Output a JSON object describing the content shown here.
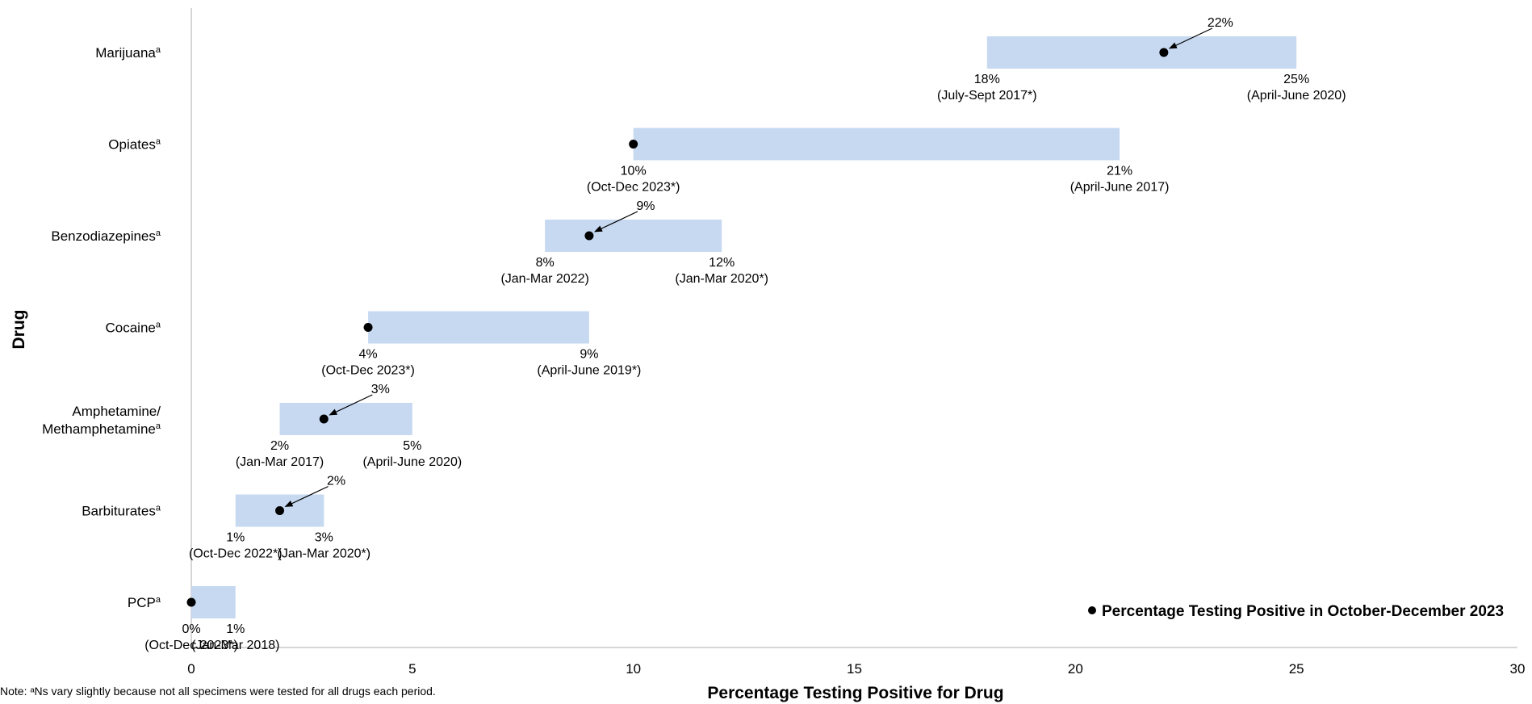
{
  "chart_data": {
    "type": "range-bar",
    "xlabel": "Percentage Testing Positive for Drug",
    "ylabel": "Drug",
    "xlim": [
      0,
      30
    ],
    "xticks": [
      0,
      5,
      10,
      15,
      20,
      25,
      30
    ],
    "legend": {
      "label": "Percentage Testing Positive in October-December 2023",
      "placement": "bottom-right"
    },
    "colors": {
      "bar": "#c6d9f1",
      "point": "#000000",
      "axis": "#c8c8c8"
    },
    "categories": [
      {
        "name": "Marijuana",
        "sup": "a",
        "min": 18,
        "max": 25,
        "current": 22,
        "min_label": "18%",
        "min_period": "(July-Sept 2017*)",
        "max_label": "25%",
        "max_period": "(April-June 2020)",
        "current_label": "22%"
      },
      {
        "name": "Opiates",
        "sup": "a",
        "min": 10,
        "max": 21,
        "current": 10,
        "min_label": "10%",
        "min_period": "(Oct-Dec 2023*)",
        "max_label": "21%",
        "max_period": "(April-June 2017)",
        "current_label": ""
      },
      {
        "name": "Benzodiazepines",
        "sup": "a",
        "min": 8,
        "max": 12,
        "current": 9,
        "min_label": "8%",
        "min_period": "(Jan-Mar 2022)",
        "max_label": "12%",
        "max_period": "(Jan-Mar 2020*)",
        "current_label": "9%"
      },
      {
        "name": "Cocaine",
        "sup": "a",
        "min": 4,
        "max": 9,
        "current": 4,
        "min_label": "4%",
        "min_period": "(Oct-Dec 2023*)",
        "max_label": "9%",
        "max_period": "(April-June 2019*)",
        "current_label": ""
      },
      {
        "name": "Amphetamine/",
        "name2": "Methamphetamine",
        "sup": "a",
        "min": 2,
        "max": 5,
        "current": 3,
        "min_label": "2%",
        "min_period": "(Jan-Mar 2017)",
        "max_label": "5%",
        "max_period": "(April-June 2020)",
        "current_label": "3%"
      },
      {
        "name": "Barbiturates",
        "sup": "a",
        "min": 1,
        "max": 3,
        "current": 2,
        "min_label": "1%",
        "min_period": "(Oct-Dec 2022*)",
        "max_label": "3%",
        "max_period": "(Jan-Mar 2020*)",
        "current_label": "2%"
      },
      {
        "name": "PCP",
        "sup": "a",
        "min": 0,
        "max": 1,
        "current": 0,
        "min_label": "0%",
        "min_period": "(Oct-Dec 2023*)",
        "max_label": "1%",
        "max_period": "(Jan-Mar 2018)",
        "current_label": ""
      }
    ],
    "note": "Note: ᵃNs vary slightly because not all specimens were tested for all drugs each period."
  }
}
